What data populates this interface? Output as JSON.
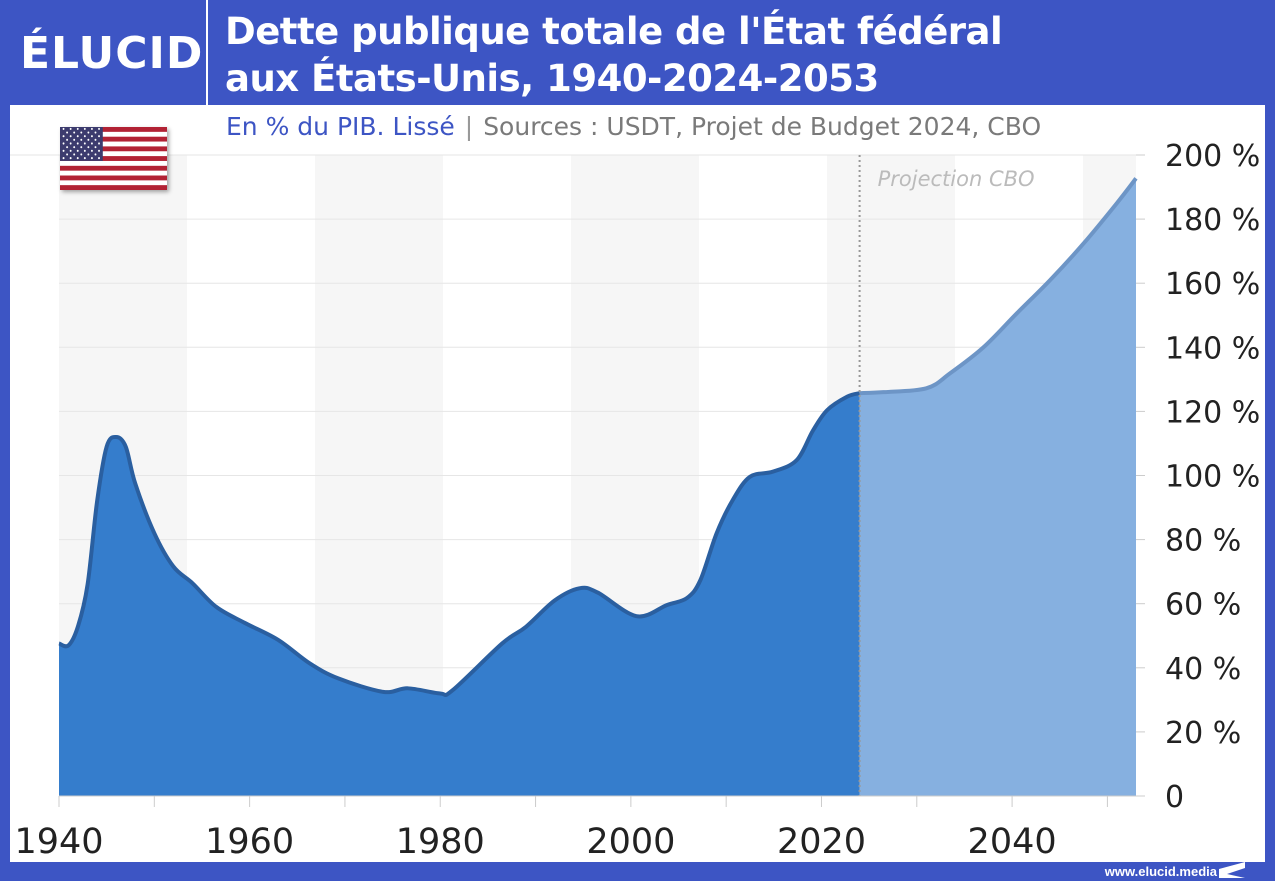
{
  "header": {
    "logo": "ÉLUCID",
    "title_line1": "Dette publique totale de l'État fédéral",
    "title_line2": "aux États-Unis, 1940-2024-2053",
    "subtitle_main": "En % du PIB. Lissé",
    "subtitle_separator": "|",
    "subtitle_sources": "Sources : USDT, Projet de Budget 2024, CBO",
    "flag_icon": "us-flag-icon"
  },
  "footer": {
    "url": "www.elucid.media"
  },
  "colors": {
    "brand": "#3d55c4",
    "historical_fill": "#357dcc",
    "historical_line": "#2a5fa0",
    "projection_fill": "#86b0e0",
    "projection_line": "#6d95c6"
  },
  "chart_data": {
    "type": "area",
    "title": "Dette publique totale de l'État fédéral aux États-Unis, 1940-2024-2053",
    "subtitle": "En % du PIB. Lissé",
    "xlim": [
      1940,
      2053
    ],
    "ylim": [
      0,
      200
    ],
    "x_ticks": [
      1940,
      1960,
      1980,
      2000,
      2020,
      2040
    ],
    "x_minor_ticks": [
      1950,
      1970,
      1990,
      2010,
      2030,
      2050
    ],
    "y_ticks": [
      0,
      20,
      40,
      60,
      80,
      100,
      120,
      140,
      160,
      180,
      200
    ],
    "y_tick_labels": [
      "0",
      "20 %",
      "40 %",
      "60 %",
      "80 %",
      "100 %",
      "120 %",
      "140 %",
      "160 %",
      "180 %",
      "200 %"
    ],
    "y_axis_side": "right",
    "grid": true,
    "annotation": {
      "text": "Projection CBO",
      "x": 2024
    },
    "series": [
      {
        "type": "historical",
        "points": [
          [
            1940,
            47.6
          ],
          [
            1941,
            47
          ],
          [
            1942,
            53
          ],
          [
            1943,
            66
          ],
          [
            1944,
            92
          ],
          [
            1945,
            109
          ],
          [
            1946,
            112
          ],
          [
            1947,
            109
          ],
          [
            1948,
            97.5
          ],
          [
            1950,
            82
          ],
          [
            1952,
            71.6
          ],
          [
            1954,
            66.4
          ],
          [
            1956.5,
            59
          ],
          [
            1959.5,
            54
          ],
          [
            1963,
            48.7
          ],
          [
            1966.3,
            41.4
          ],
          [
            1969.3,
            36.7
          ],
          [
            1974,
            32.5
          ],
          [
            1976.6,
            33.6
          ],
          [
            1980,
            32
          ],
          [
            1981.3,
            33
          ],
          [
            1986.5,
            47.6
          ],
          [
            1989,
            52.8
          ],
          [
            1992,
            61
          ],
          [
            1994.6,
            64.8
          ],
          [
            1996.5,
            63.5
          ],
          [
            2000.6,
            56.1
          ],
          [
            2003.8,
            59.6
          ],
          [
            2005.9,
            61.8
          ],
          [
            2007.3,
            67.4
          ],
          [
            2009,
            82
          ],
          [
            2010.7,
            92.4
          ],
          [
            2012.5,
            99.6
          ],
          [
            2014.9,
            101.2
          ],
          [
            2017.4,
            104.8
          ],
          [
            2019.1,
            114
          ],
          [
            2020.6,
            120.4
          ],
          [
            2022.7,
            124.6
          ],
          [
            2024,
            125.7
          ]
        ]
      },
      {
        "type": "projection",
        "points": [
          [
            2024,
            125.7
          ],
          [
            2026.5,
            126
          ],
          [
            2031,
            127.2
          ],
          [
            2033.5,
            131.9
          ],
          [
            2037,
            140
          ],
          [
            2040.5,
            150.6
          ],
          [
            2044,
            161
          ],
          [
            2047.5,
            172.4
          ],
          [
            2051,
            185
          ],
          [
            2053,
            192.7
          ]
        ]
      }
    ]
  }
}
